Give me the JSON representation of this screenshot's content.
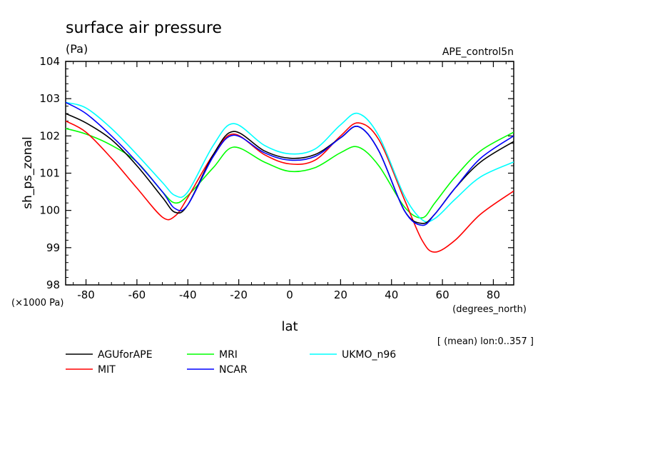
{
  "chart_data": {
    "type": "line",
    "title": "surface air pressure",
    "units": "(Pa)",
    "experiment": "APE_control5n",
    "xlabel": "lat",
    "xunits": "(degrees_north)",
    "ylabel": "sh_ps_zonal",
    "yscale_note": "(×1000 Pa)",
    "footnote": "[ (mean) lon:0..357 ]",
    "xlim": [
      -88,
      88
    ],
    "ylim": [
      98,
      104
    ],
    "xticks": [
      "-80",
      "-60",
      "-40",
      "-20",
      "0",
      "20",
      "40",
      "60",
      "80"
    ],
    "yticks": [
      "98",
      "99",
      "100",
      "101",
      "102",
      "103",
      "104"
    ],
    "legend_position": "bottom",
    "x": [
      -88,
      -80,
      -70,
      -60,
      -50,
      -45,
      -40,
      -30,
      -22,
      -10,
      0,
      10,
      20,
      27,
      35,
      45,
      52,
      57,
      65,
      75,
      88
    ],
    "series": [
      {
        "name": "AGUforAPE",
        "color": "#000000",
        "values": [
          102.6,
          102.35,
          101.9,
          101.2,
          100.35,
          99.95,
          100.15,
          101.5,
          102.12,
          101.6,
          101.4,
          101.5,
          101.95,
          102.25,
          101.6,
          100.0,
          99.65,
          99.9,
          100.6,
          101.3,
          101.85
        ]
      },
      {
        "name": "MIT",
        "color": "#ff0000",
        "values": [
          102.4,
          102.1,
          101.4,
          100.6,
          99.82,
          99.85,
          100.35,
          101.5,
          102.05,
          101.5,
          101.25,
          101.35,
          102.0,
          102.35,
          101.9,
          100.3,
          99.2,
          98.88,
          99.2,
          99.9,
          100.52
        ]
      },
      {
        "name": "MRI",
        "color": "#00ff00",
        "values": [
          102.2,
          102.05,
          101.75,
          101.3,
          100.5,
          100.2,
          100.4,
          101.15,
          101.7,
          101.3,
          101.05,
          101.15,
          101.55,
          101.7,
          101.2,
          100.1,
          99.8,
          100.2,
          100.9,
          101.6,
          102.1
        ]
      },
      {
        "name": "NCAR",
        "color": "#0000ff",
        "values": [
          102.9,
          102.6,
          102.0,
          101.3,
          100.5,
          100.05,
          100.15,
          101.45,
          102.02,
          101.55,
          101.35,
          101.45,
          101.95,
          102.25,
          101.6,
          100.0,
          99.6,
          99.9,
          100.6,
          101.4,
          102.0
        ]
      },
      {
        "name": "UKMO_n96",
        "color": "#00ffff",
        "values": [
          102.9,
          102.75,
          102.2,
          101.5,
          100.75,
          100.4,
          100.5,
          101.75,
          102.33,
          101.75,
          101.52,
          101.65,
          102.3,
          102.6,
          102.0,
          100.4,
          99.75,
          99.78,
          100.3,
          100.9,
          101.3
        ]
      }
    ]
  }
}
